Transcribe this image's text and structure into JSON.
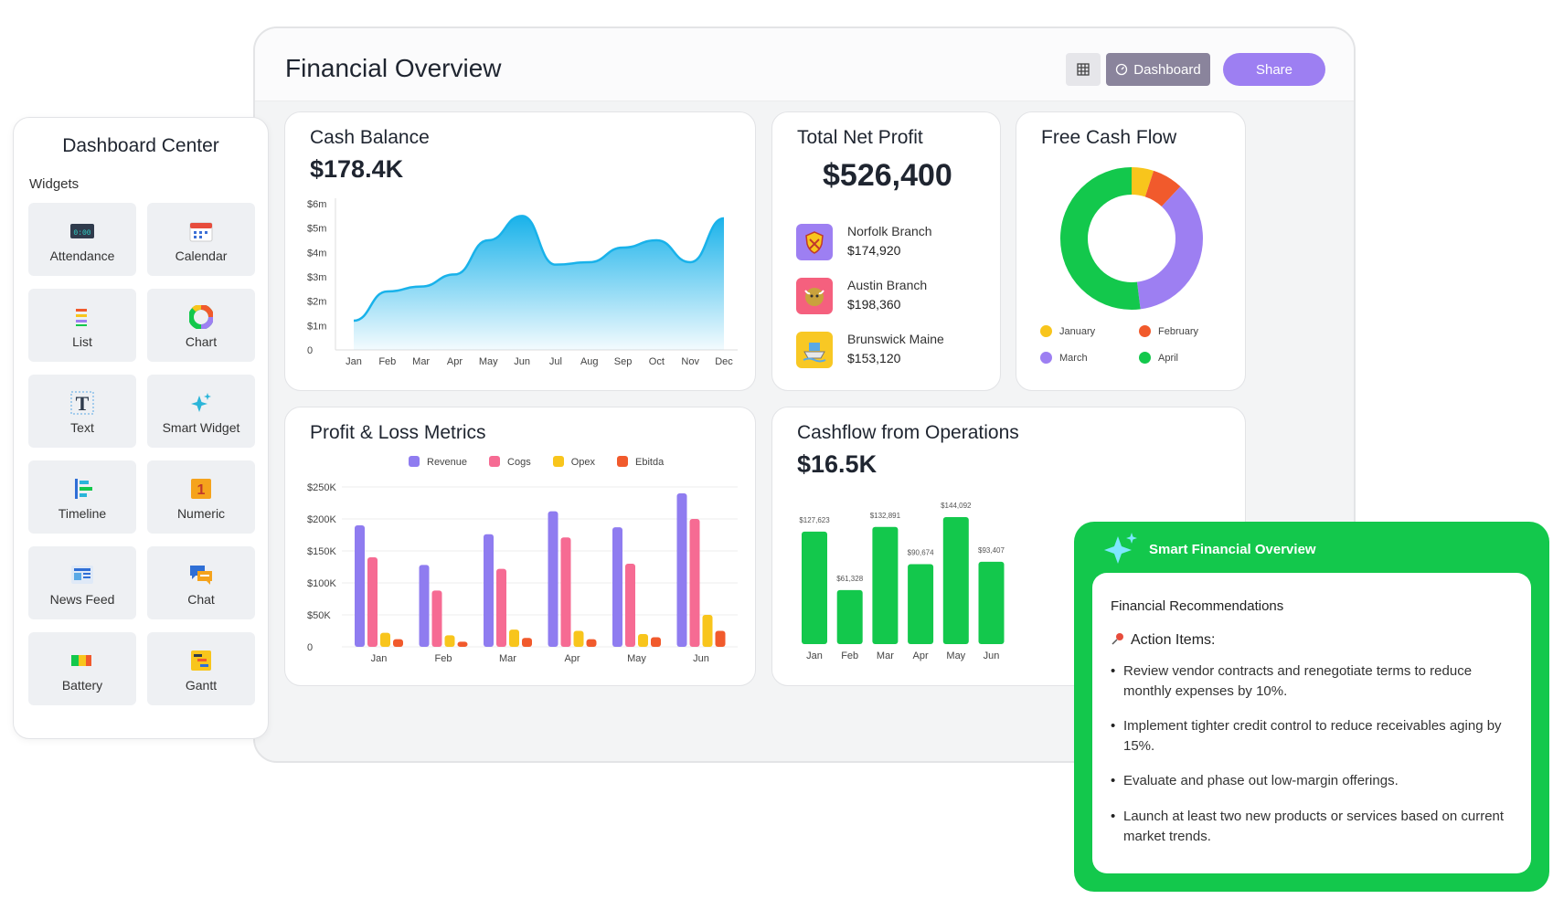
{
  "header": {
    "title": "Financial Overview",
    "dashboard_label": "Dashboard",
    "share_label": "Share"
  },
  "cash_balance": {
    "title": "Cash Balance",
    "value": "$178.4K",
    "chart_data": {
      "type": "area",
      "x": [
        "Jan",
        "Feb",
        "Mar",
        "Apr",
        "May",
        "Jun",
        "Jul",
        "Aug",
        "Sep",
        "Oct",
        "Nov",
        "Dec"
      ],
      "y_ticks": [
        "$6m",
        "$5m",
        "$4m",
        "$3m",
        "$2m",
        "$1m",
        "0"
      ],
      "ylim": [
        0,
        6
      ],
      "series": [
        {
          "values": [
            1.2,
            2.4,
            2.6,
            3.1,
            4.5,
            5.5,
            3.5,
            3.6,
            4.2,
            4.5,
            3.6,
            5.4
          ]
        }
      ],
      "color": "#19b2ea"
    }
  },
  "net_profit": {
    "title": "Total Net Profit",
    "value": "$526,400",
    "branches": [
      {
        "name": "Norfolk Branch",
        "value": "$174,920",
        "icon": "shield-icon",
        "color": "#9d7ff2"
      },
      {
        "name": "Austin Branch",
        "value": "$198,360",
        "icon": "bull-icon",
        "color": "#f5607e"
      },
      {
        "name": "Brunswick Maine",
        "value": "$153,120",
        "icon": "ship-icon",
        "color": "#f8c824"
      }
    ]
  },
  "free_cash_flow": {
    "title": "Free Cash Flow",
    "chart_data": {
      "type": "pie",
      "labels": [
        "January",
        "February",
        "March",
        "April"
      ],
      "values": [
        5,
        7,
        36,
        52
      ],
      "colors": [
        "#f8c51c",
        "#f15a2c",
        "#9d7ff2",
        "#13c84c"
      ]
    }
  },
  "profit_loss": {
    "title": "Profit & Loss Metrics",
    "chart_data": {
      "type": "bar",
      "categories": [
        "Jan",
        "Feb",
        "Mar",
        "Apr",
        "May",
        "Jun"
      ],
      "y_ticks": [
        "$250K",
        "$200K",
        "$150K",
        "$100K",
        "$50K",
        "0"
      ],
      "ylim": [
        0,
        250000
      ],
      "series": [
        {
          "name": "Revenue",
          "color": "#8f7cf0",
          "values": [
            190000,
            128000,
            176000,
            212000,
            187000,
            240000
          ]
        },
        {
          "name": "Cogs",
          "color": "#f66b93",
          "values": [
            140000,
            88000,
            122000,
            171000,
            130000,
            200000
          ]
        },
        {
          "name": "Opex",
          "color": "#f8c51c",
          "values": [
            22000,
            18000,
            27000,
            25000,
            20000,
            50000
          ]
        },
        {
          "name": "Ebitda",
          "color": "#f15a2c",
          "values": [
            12000,
            8000,
            14000,
            12000,
            15000,
            25000
          ]
        }
      ]
    }
  },
  "cashflow_ops": {
    "title": "Cashflow from Operations",
    "value": "$16.5K",
    "chart_data": {
      "type": "bar",
      "categories": [
        "Jan",
        "Feb",
        "Mar",
        "Apr",
        "May",
        "Jun"
      ],
      "values": [
        127623,
        61328,
        132891,
        90674,
        144092,
        93407
      ],
      "data_labels": [
        "$127,623",
        "$61,328",
        "$132,891",
        "$90,674",
        "$144,092",
        "$93,407"
      ],
      "color": "#13c84c"
    }
  },
  "sidebar": {
    "title": "Dashboard Center",
    "widgets_label": "Widgets",
    "widgets": [
      {
        "label": "Attendance",
        "icon": "clock-icon"
      },
      {
        "label": "Calendar",
        "icon": "calendar-icon"
      },
      {
        "label": "List",
        "icon": "list-icon"
      },
      {
        "label": "Chart",
        "icon": "pie-chart-icon"
      },
      {
        "label": "Text",
        "icon": "text-icon"
      },
      {
        "label": "Smart Widget",
        "icon": "sparkle-icon"
      },
      {
        "label": "Timeline",
        "icon": "timeline-icon"
      },
      {
        "label": "Numeric",
        "icon": "numeric-icon"
      },
      {
        "label": "News Feed",
        "icon": "newsfeed-icon"
      },
      {
        "label": "Chat",
        "icon": "chat-icon"
      },
      {
        "label": "Battery",
        "icon": "battery-icon"
      },
      {
        "label": "Gantt",
        "icon": "gantt-icon"
      }
    ]
  },
  "smart_panel": {
    "title": "Smart Financial Overview",
    "recommendations_title": "Financial Recommendations",
    "action_title": "Action Items:",
    "items": [
      "Review vendor contracts and renegotiate terms to reduce monthly expenses by 10%.",
      "Implement tighter credit control to reduce receivables aging by 15%.",
      "Evaluate and phase out low-margin offerings.",
      "Launch at least two new products or services based on current market trends."
    ]
  }
}
